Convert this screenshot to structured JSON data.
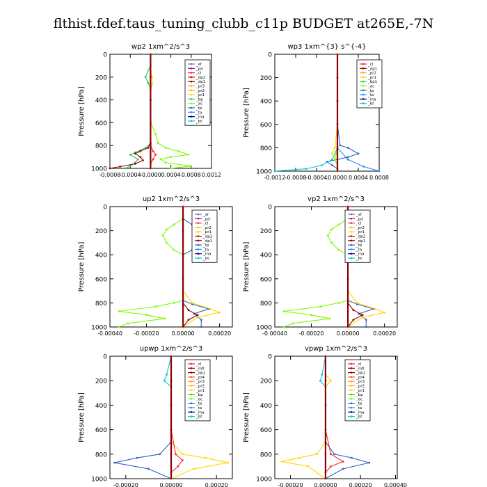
{
  "title": "flthist.fdef.taus_tuning_clubb_c11p  BUDGET at265E,-7N",
  "colors": {
    "sf": "#9b59b6",
    "pd": "#7b1fa2",
    "cl": "#ff2222",
    "dp2": "#cc0000",
    "dp1": "#8b0000",
    "pr3": "#ffa500",
    "pr2": "#ffaa33",
    "pr1": "#ffd700",
    "bp": "#22c55e",
    "ac": "#7CFC00",
    "tp": "#3060c0",
    "ta": "#1e90ff",
    "ma": "#000080",
    "bt": "#00c8d8",
    "mfl": "#8b0000",
    "pr4": "#ff6600",
    "bp1": "#22c55e"
  },
  "chart_data": [
    {
      "type": "line",
      "title": "wp2   1xm^2/s^3",
      "ylabel": "Pressure  [hPa]",
      "xlim": [
        -0.0008,
        0.0012
      ],
      "xticks": [
        -0.0008,
        -0.0004,
        0.0,
        0.0004,
        0.0008,
        0.0012
      ],
      "xticklabels": [
        "-0.0008",
        "-0.0004",
        "-0.0000",
        "0.0004",
        "0.0008",
        "0.0012"
      ],
      "ylim": [
        1000,
        0
      ],
      "yticks": [
        0,
        200,
        400,
        600,
        800,
        1000
      ],
      "legend": [
        "_sf",
        "_pd",
        "_cl",
        "_dp2",
        "_dp1",
        "_pr3",
        "_pr2",
        "_pr1",
        "_bp",
        "_ac",
        "_tp",
        "_ta",
        "_ma",
        "_bt"
      ],
      "series": [
        {
          "key": "ac",
          "x": [
            0.0,
            0.0,
            0.0,
            0.0,
            0.0,
            0.0,
            0.0,
            0.0001,
            0.00015,
            0.0003,
            0.00055,
            0.00075,
            0.0004,
            0.0002,
            0.0003,
            0.0008,
            0.0004
          ],
          "y": [
            0,
            100,
            200,
            300,
            400,
            500,
            600,
            700,
            780,
            820,
            850,
            880,
            900,
            920,
            950,
            980,
            1000
          ]
        },
        {
          "key": "bp",
          "x": [
            0.0,
            0.0,
            -0.0001,
            -5e-05,
            0.0,
            0.0,
            0.0,
            0.0,
            -0.0001,
            -0.0003,
            -0.0004,
            -0.00025,
            -0.0003,
            -0.0004,
            -0.0005
          ],
          "y": [
            0,
            100,
            200,
            250,
            300,
            400,
            600,
            780,
            820,
            860,
            880,
            920,
            950,
            980,
            1000
          ]
        },
        {
          "key": "dp1",
          "x": [
            0.0,
            0.0,
            0.0,
            0.0,
            0.0,
            -5e-05,
            -0.0002,
            -0.0003,
            -0.0002,
            -0.00015,
            -0.0003,
            -0.0006,
            -0.0008
          ],
          "y": [
            0,
            200,
            400,
            600,
            780,
            820,
            850,
            870,
            900,
            930,
            960,
            985,
            1000
          ]
        },
        {
          "key": "cl",
          "x": [
            0.0,
            0.0,
            0.0,
            0.0,
            0.0,
            5e-05,
            0.0001,
            5e-05,
            0.0,
            0.0
          ],
          "y": [
            0,
            200,
            400,
            600,
            800,
            850,
            880,
            920,
            960,
            1000
          ]
        },
        {
          "key": "pr1",
          "x": [
            0.0,
            0.0,
            3e-05,
            3e-05,
            0.0,
            0.0,
            0.0
          ],
          "y": [
            0,
            150,
            200,
            260,
            320,
            600,
            1000
          ]
        },
        {
          "key": "pd",
          "x": [
            0.0,
            0.0,
            0.0,
            0.0,
            0.0,
            0.0
          ],
          "y": [
            0,
            200,
            400,
            600,
            800,
            1000
          ]
        }
      ]
    },
    {
      "type": "line",
      "title": "wp3   1xm^{3} s^{-4}",
      "ylabel": "Pressure  [hPa]",
      "xlim": [
        -0.0012,
        0.0008
      ],
      "xticks": [
        -0.0012,
        -0.0008,
        -0.0004,
        0.0,
        0.0004,
        0.0008
      ],
      "xticklabels": [
        "-0.0012",
        "-0.0008",
        "-0.0004",
        "0.0000",
        "0.0004",
        "0.0008"
      ],
      "ylim": [
        1000,
        0
      ],
      "yticks": [
        0,
        200,
        400,
        600,
        800,
        1000
      ],
      "legend": [
        "_cl",
        "_dp1",
        "_pr2",
        "_pr1",
        "_bp1",
        "_ac",
        "_tp",
        "_ta",
        "_ma",
        "_bt"
      ],
      "series": [
        {
          "key": "tp",
          "x": [
            0.0,
            0.0,
            0.0,
            0.0,
            5e-05,
            0.0002,
            0.0004,
            0.0002,
            0.0,
            -0.0002,
            -0.0001,
            0.0,
            0.0
          ],
          "y": [
            0,
            200,
            400,
            600,
            780,
            800,
            850,
            880,
            900,
            920,
            950,
            980,
            1000
          ]
        },
        {
          "key": "bt",
          "x": [
            0.0,
            0.0,
            0.0,
            0.0,
            0.0,
            -0.0001,
            -0.0003,
            -0.0006,
            -0.0012
          ],
          "y": [
            0,
            200,
            400,
            600,
            800,
            900,
            950,
            980,
            1000
          ]
        },
        {
          "key": "ta",
          "x": [
            0.0,
            0.0,
            0.0,
            0.0,
            0.0,
            0.0002,
            0.0005,
            0.0008
          ],
          "y": [
            0,
            200,
            400,
            600,
            800,
            900,
            960,
            1000
          ]
        },
        {
          "key": "pr1",
          "x": [
            0.0,
            0.0,
            0.0,
            0.0,
            -5e-05,
            -0.0001,
            -5e-05,
            0.0,
            0.0
          ],
          "y": [
            0,
            200,
            400,
            600,
            800,
            850,
            900,
            950,
            1000
          ]
        },
        {
          "key": "ac",
          "x": [
            0.0,
            0.0,
            0.0,
            0.0,
            0.0,
            -5e-05,
            0.0,
            0.0
          ],
          "y": [
            0,
            200,
            400,
            600,
            800,
            900,
            950,
            1000
          ]
        },
        {
          "key": "cl",
          "x": [
            0.0,
            0.0,
            0.0,
            0.0,
            0.0,
            0.0
          ],
          "y": [
            0,
            200,
            400,
            600,
            800,
            1000
          ]
        }
      ]
    },
    {
      "type": "line",
      "title": "up2   1xm^2/s^3",
      "ylabel": "Pressure  [hPa]",
      "xlim": [
        -0.0004,
        0.00027
      ],
      "xticks": [
        -0.0004,
        -0.0002,
        0.0,
        0.0002
      ],
      "xticklabels": [
        "-0.00040",
        "-0.00020",
        "0.00000",
        "0.00020"
      ],
      "ylim": [
        1000,
        0
      ],
      "yticks": [
        0,
        200,
        400,
        600,
        800,
        1000
      ],
      "legend": [
        "_sf",
        "_pd",
        "_cl",
        "_pr2",
        "_pr1",
        "_dp2",
        "_dp1",
        "_tp",
        "_ta",
        "_ma",
        "_bt"
      ],
      "series": [
        {
          "key": "ac",
          "x": [
            0.0,
            0.0,
            -5e-05,
            -9e-05,
            -0.00011,
            -9e-05,
            -5e-05,
            0.0,
            0.0,
            0.0,
            -5e-05,
            -0.00015,
            -0.00035,
            -0.0002,
            -0.0001,
            -0.0003,
            -0.00035
          ],
          "y": [
            0,
            100,
            150,
            190,
            240,
            300,
            360,
            400,
            600,
            780,
            800,
            830,
            870,
            900,
            930,
            970,
            1000
          ]
        },
        {
          "key": "tp",
          "x": [
            0.0,
            0.0,
            5e-05,
            9e-05,
            0.0001,
            8e-05,
            5e-05,
            0.0,
            0.0,
            5e-05,
            0.00014,
            6e-05,
            0.0001,
            0.0001
          ],
          "y": [
            0,
            100,
            150,
            190,
            240,
            300,
            360,
            400,
            780,
            810,
            850,
            890,
            940,
            1000
          ]
        },
        {
          "key": "pr1",
          "x": [
            0.0,
            0.0,
            0.0,
            0.0,
            5e-05,
            0.00015,
            0.0002,
            8e-05,
            0.0
          ],
          "y": [
            0,
            200,
            400,
            700,
            800,
            850,
            880,
            920,
            1000
          ]
        },
        {
          "key": "dp1",
          "x": [
            0.0,
            0.0,
            0.0,
            0.0,
            3e-05,
            8e-05,
            3e-05,
            0.0
          ],
          "y": [
            0,
            200,
            400,
            800,
            860,
            900,
            940,
            1000
          ]
        },
        {
          "key": "cl",
          "x": [
            0.0,
            0.0,
            0.0,
            0.0,
            0.0,
            0.0
          ],
          "y": [
            0,
            200,
            400,
            600,
            800,
            1000
          ]
        }
      ]
    },
    {
      "type": "line",
      "title": "vp2   1xm^2/s^3",
      "ylabel": "Pressure  [hPa]",
      "xlim": [
        -0.0004,
        0.00027
      ],
      "xticks": [
        -0.0004,
        -0.0002,
        0.0,
        0.0002
      ],
      "xticklabels": [
        "-0.00040",
        "-0.00020",
        "0.00000",
        "0.00020"
      ],
      "ylim": [
        1000,
        0
      ],
      "yticks": [
        0,
        200,
        400,
        600,
        800,
        1000
      ],
      "legend": [
        "_sf",
        "_pd",
        "_cl",
        "_pr2",
        "_pr1",
        "_dp2",
        "_dp1",
        "_tp",
        "_ta",
        "_ma",
        "_bt"
      ],
      "series": [
        {
          "key": "ac",
          "x": [
            0.0,
            0.0,
            -5e-05,
            -9e-05,
            -0.00011,
            -9e-05,
            -5e-05,
            0.0,
            0.0,
            0.0,
            -5e-05,
            -0.00015,
            -0.00035,
            -0.0002,
            -0.0001,
            -0.0003,
            -0.00035
          ],
          "y": [
            0,
            100,
            150,
            190,
            240,
            300,
            360,
            400,
            600,
            780,
            800,
            830,
            870,
            900,
            930,
            970,
            1000
          ]
        },
        {
          "key": "tp",
          "x": [
            0.0,
            0.0,
            5e-05,
            9e-05,
            0.0001,
            8e-05,
            5e-05,
            0.0,
            0.0,
            5e-05,
            0.00014,
            6e-05,
            0.0001,
            0.0001
          ],
          "y": [
            0,
            100,
            150,
            190,
            240,
            300,
            360,
            400,
            780,
            810,
            850,
            890,
            940,
            1000
          ]
        },
        {
          "key": "pr1",
          "x": [
            0.0,
            0.0,
            0.0,
            0.0,
            5e-05,
            0.00015,
            0.0002,
            8e-05,
            0.0
          ],
          "y": [
            0,
            200,
            400,
            700,
            800,
            850,
            880,
            920,
            1000
          ]
        },
        {
          "key": "dp1",
          "x": [
            0.0,
            0.0,
            0.0,
            0.0,
            3e-05,
            8e-05,
            3e-05,
            0.0
          ],
          "y": [
            0,
            200,
            400,
            800,
            860,
            900,
            940,
            1000
          ]
        },
        {
          "key": "cl",
          "x": [
            0.0,
            0.0,
            0.0,
            0.0,
            0.0,
            0.0
          ],
          "y": [
            0,
            200,
            400,
            600,
            800,
            1000
          ]
        }
      ]
    },
    {
      "type": "line",
      "title": "upwp   1xm^2/s^3",
      "ylabel": "Pressure  [hPa]",
      "xlim": [
        -0.00027,
        0.00027
      ],
      "xticks": [
        -0.0002,
        0.0,
        0.0002
      ],
      "xticklabels": [
        "-0.00020",
        "0.00000",
        "0.00020"
      ],
      "ylim": [
        1000,
        0
      ],
      "yticks": [
        0,
        200,
        400,
        600,
        800,
        1000
      ],
      "legend": [
        "_cl",
        "_mfl",
        "_dp1",
        "_pr4",
        "_pr3",
        "_pr2",
        "_pr1",
        "_bp",
        "_ac",
        "_tp",
        "_ta",
        "_ma",
        "_bt"
      ],
      "series": [
        {
          "key": "pr1",
          "x": [
            0.0,
            0.0,
            0.0,
            0.0,
            5e-05,
            0.00015,
            0.00025,
            0.0001,
            0.0
          ],
          "y": [
            0,
            200,
            400,
            700,
            800,
            830,
            870,
            920,
            1000
          ]
        },
        {
          "key": "tp",
          "x": [
            0.0,
            0.0,
            0.0,
            0.0,
            -5e-05,
            -0.00015,
            -0.00025,
            -0.0001,
            0.0
          ],
          "y": [
            0,
            200,
            400,
            700,
            800,
            830,
            870,
            920,
            1000
          ]
        },
        {
          "key": "cl",
          "x": [
            0.0,
            0.0,
            2e-05,
            5e-05,
            3e-05,
            0.0,
            0.0
          ],
          "y": [
            0,
            600,
            800,
            850,
            900,
            950,
            1000
          ]
        },
        {
          "key": "bt",
          "x": [
            0.0,
            -2e-05,
            -3e-05,
            0.0,
            0.0,
            0.0
          ],
          "y": [
            0,
            150,
            200,
            250,
            400,
            1000
          ]
        },
        {
          "key": "cl",
          "x": [
            0.0,
            0.0,
            0.0,
            0.0,
            0.0,
            0.0
          ],
          "y": [
            0,
            200,
            400,
            600,
            800,
            1000
          ]
        }
      ]
    },
    {
      "type": "line",
      "title": "vpwp   1xm^2/s^3",
      "ylabel": "Pressure  [hPa]",
      "xlim": [
        -0.00029,
        0.00041
      ],
      "xticks": [
        -0.0002,
        0.0,
        0.0002,
        0.0004
      ],
      "xticklabels": [
        "-0.00020",
        "0.00000",
        "0.00020",
        "0.00040"
      ],
      "ylim": [
        1000,
        0
      ],
      "yticks": [
        0,
        200,
        400,
        600,
        800,
        1000
      ],
      "legend": [
        "_cl",
        "_mfl",
        "_dp1",
        "_pr4",
        "_pr3",
        "_pr2",
        "_pr1",
        "_bp",
        "_ac",
        "_tp",
        "_ta",
        "_ma",
        "_bt"
      ],
      "series": [
        {
          "key": "tp",
          "x": [
            0.0,
            0.0,
            0.0,
            0.0,
            5e-05,
            0.00015,
            0.00025,
            0.0001,
            0.0
          ],
          "y": [
            0,
            200,
            400,
            700,
            800,
            830,
            870,
            920,
            1000
          ]
        },
        {
          "key": "pr1",
          "x": [
            0.0,
            0.0,
            3e-05,
            0.0,
            0.0,
            0.0,
            -5e-05,
            -0.00015,
            -0.00025,
            -0.0001,
            0.0
          ],
          "y": [
            0,
            150,
            200,
            250,
            400,
            700,
            800,
            830,
            860,
            900,
            1000
          ]
        },
        {
          "key": "cl",
          "x": [
            0.0,
            0.0,
            3e-05,
            0.0001,
            3e-05,
            0.0,
            0.0
          ],
          "y": [
            0,
            600,
            800,
            860,
            900,
            950,
            1000
          ]
        },
        {
          "key": "bt",
          "x": [
            0.0,
            -2e-05,
            -3e-05,
            0.0,
            0.0,
            0.0
          ],
          "y": [
            0,
            150,
            200,
            250,
            400,
            1000
          ]
        },
        {
          "key": "cl",
          "x": [
            0.0,
            0.0,
            0.0,
            0.0,
            0.0,
            0.0
          ],
          "y": [
            0,
            200,
            400,
            600,
            800,
            1000
          ]
        }
      ]
    }
  ]
}
